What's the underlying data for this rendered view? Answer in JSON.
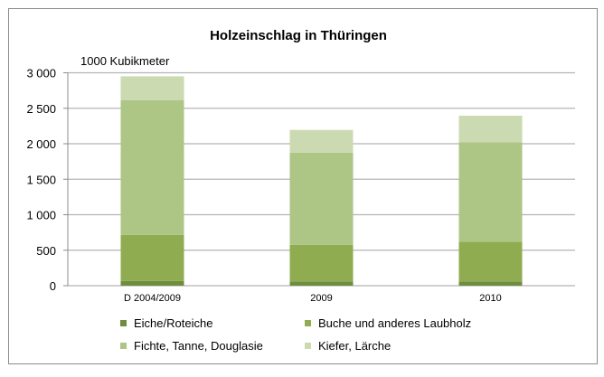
{
  "chart_data": {
    "type": "bar",
    "stacked": true,
    "title": "Holzeinschlag in Thüringen",
    "ylabel": "1000 Kubikmeter",
    "xlabel": "",
    "ylim": [
      0,
      3000
    ],
    "yticks": [
      0,
      500,
      1000,
      1500,
      2000,
      2500,
      3000
    ],
    "ytick_labels": [
      "0",
      "500",
      "1 000",
      "1 500",
      "2 000",
      "2 500",
      "3 000"
    ],
    "grid": true,
    "legend_placement": "bottom",
    "categories": [
      "D 2004/2009",
      "2009",
      "2010"
    ],
    "series": [
      {
        "name": "Eiche/Roteiche",
        "color": "#6f8d3f",
        "values": [
          65,
          60,
          60
        ]
      },
      {
        "name": "Buche und anderes Laubholz",
        "color": "#8fad50",
        "values": [
          650,
          515,
          560
        ]
      },
      {
        "name": "Fichte, Tanne, Douglasie",
        "color": "#adc585",
        "values": [
          1900,
          1300,
          1400
        ]
      },
      {
        "name": "Kiefer, Lärche",
        "color": "#cbdab0",
        "values": [
          335,
          320,
          375
        ]
      }
    ]
  }
}
